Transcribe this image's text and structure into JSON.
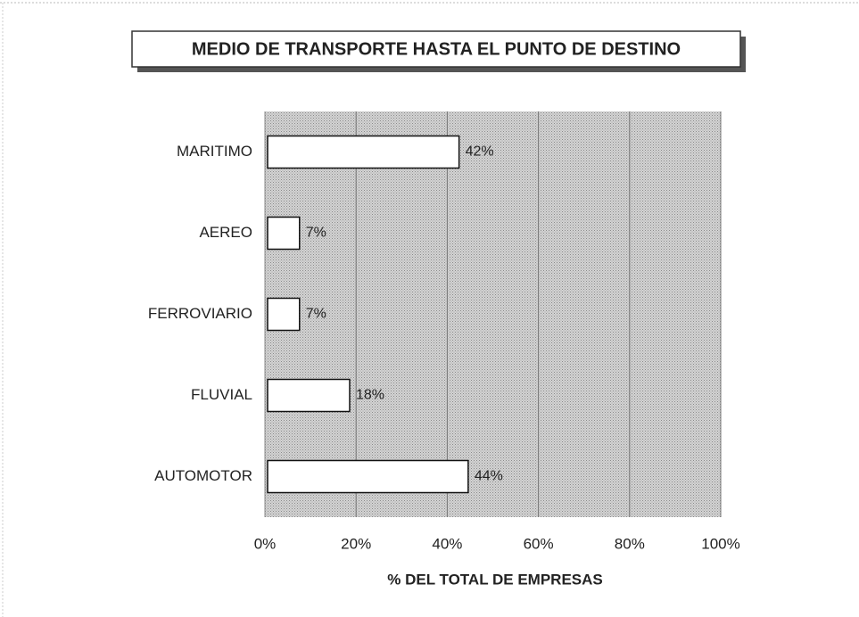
{
  "chart_data": {
    "type": "bar",
    "orientation": "horizontal",
    "title": "MEDIO DE TRANSPORTE HASTA EL PUNTO DE DESTINO",
    "x_label": "% DEL TOTAL  DE EMPRESAS",
    "categories": [
      "MARITIMO",
      "AEREO",
      "FERROVIARIO",
      "FLUVIAL",
      "AUTOMOTOR"
    ],
    "values": [
      42,
      7,
      7,
      18,
      44
    ],
    "value_labels": [
      "42%",
      "7%",
      "7%",
      "18%",
      "44%"
    ],
    "color": "#ffffff",
    "xlim": [
      0,
      100
    ],
    "xticks": [
      {
        "value": 0,
        "label": "0%"
      },
      {
        "value": 20,
        "label": "20%"
      },
      {
        "value": 40,
        "label": "40%"
      },
      {
        "value": 60,
        "label": "60%"
      },
      {
        "value": 80,
        "label": "80%"
      },
      {
        "value": 100,
        "label": "100%"
      }
    ],
    "grid": true
  }
}
